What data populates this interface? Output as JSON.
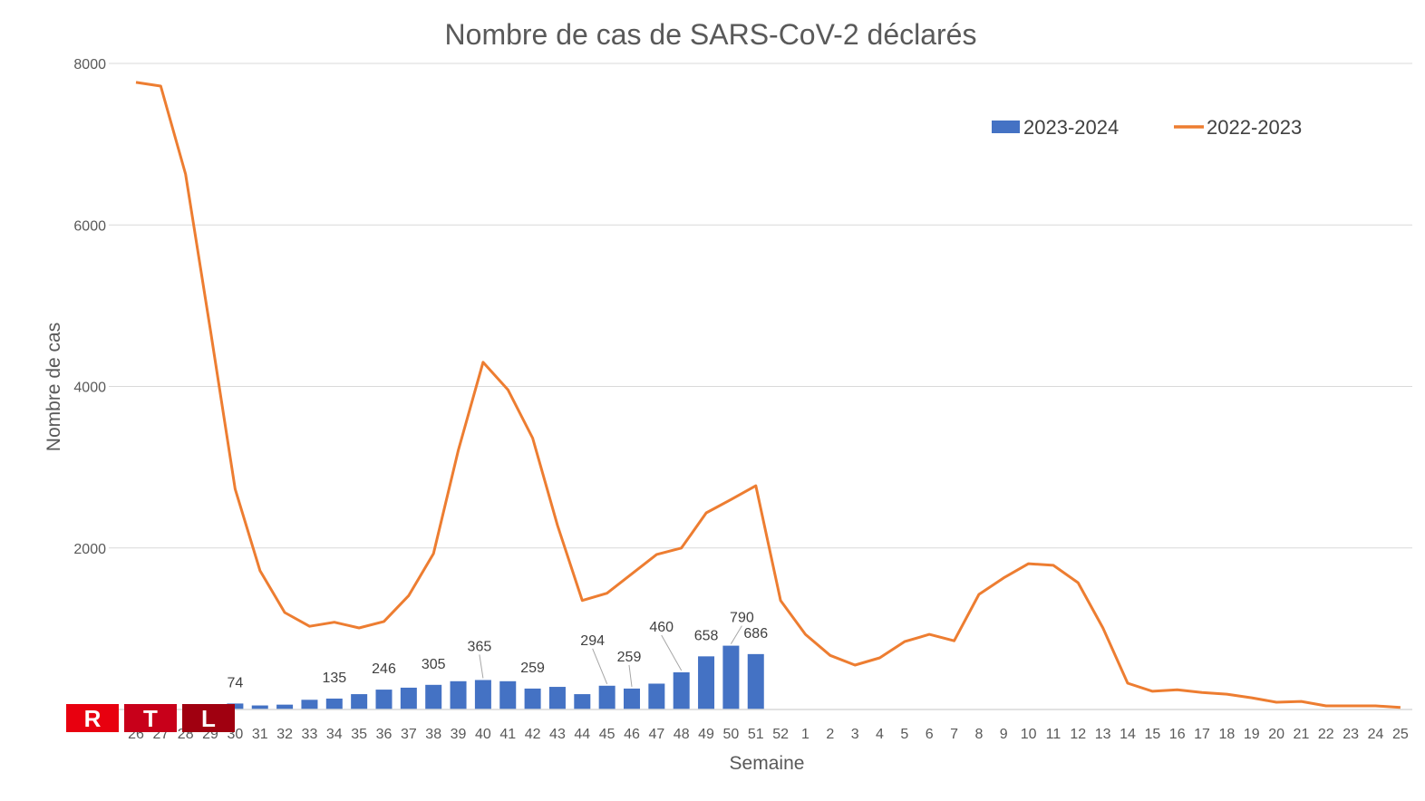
{
  "chart_data": {
    "type": "bar+line",
    "title": "Nombre de cas de SARS-CoV-2 déclarés",
    "xlabel": "Semaine",
    "ylabel": "Nombre de cas",
    "ylim": [
      0,
      8000
    ],
    "yticks": [
      "0",
      "2000",
      "4000",
      "6000",
      "8000"
    ],
    "ytick_values": [
      0,
      2000,
      4000,
      6000,
      8000
    ],
    "yticks_shown": [
      "2000",
      "4000",
      "6000",
      "8000"
    ],
    "grid": true,
    "legend_position": "top-right",
    "categories": [
      "26",
      "27",
      "28",
      "29",
      "30",
      "31",
      "32",
      "33",
      "34",
      "35",
      "36",
      "37",
      "38",
      "39",
      "40",
      "41",
      "42",
      "43",
      "44",
      "45",
      "46",
      "47",
      "48",
      "49",
      "50",
      "51",
      "52",
      "1",
      "2",
      "3",
      "4",
      "5",
      "6",
      "7",
      "8",
      "9",
      "10",
      "11",
      "12",
      "13",
      "14",
      "15",
      "16",
      "17",
      "18",
      "19",
      "20",
      "21",
      "22",
      "23",
      "24",
      "25"
    ],
    "series": [
      {
        "name": "2023-2024",
        "type": "bar",
        "color": "#4472c4",
        "values": [
          null,
          null,
          null,
          null,
          74,
          50,
          60,
          120,
          135,
          190,
          246,
          270,
          305,
          350,
          365,
          350,
          259,
          280,
          190,
          294,
          259,
          320,
          460,
          658,
          790,
          686,
          null,
          null,
          null,
          null,
          null,
          null,
          null,
          null,
          null,
          null,
          null,
          null,
          null,
          null,
          null,
          null,
          null,
          null,
          null,
          null,
          null,
          null,
          null,
          null,
          null,
          null
        ],
        "data_labels": {
          "30": "74",
          "34": "135",
          "36": "246",
          "38": "305",
          "40": "365",
          "42": "259",
          "45": "294",
          "46": "259",
          "48": "460",
          "49": "658",
          "50": "790",
          "51": "686"
        }
      },
      {
        "name": "2022-2023",
        "type": "line",
        "color": "#ed7d31",
        "values": [
          7765,
          7720,
          6630,
          4700,
          2730,
          1720,
          1200,
          1030,
          1080,
          1010,
          1090,
          1410,
          1930,
          3210,
          4300,
          3960,
          3360,
          2280,
          1350,
          1440,
          1680,
          1920,
          2000,
          2435,
          2600,
          2770,
          1350,
          930,
          670,
          550,
          640,
          840,
          930,
          850,
          1425,
          1630,
          1805,
          1785,
          1570,
          1010,
          325,
          225,
          245,
          210,
          190,
          145,
          90,
          100,
          45,
          45,
          45,
          25
        ]
      }
    ]
  },
  "logo": {
    "letters": [
      "R",
      "T",
      "L"
    ],
    "colors": [
      "#e8000f",
      "#c8001a",
      "#a00010"
    ]
  }
}
